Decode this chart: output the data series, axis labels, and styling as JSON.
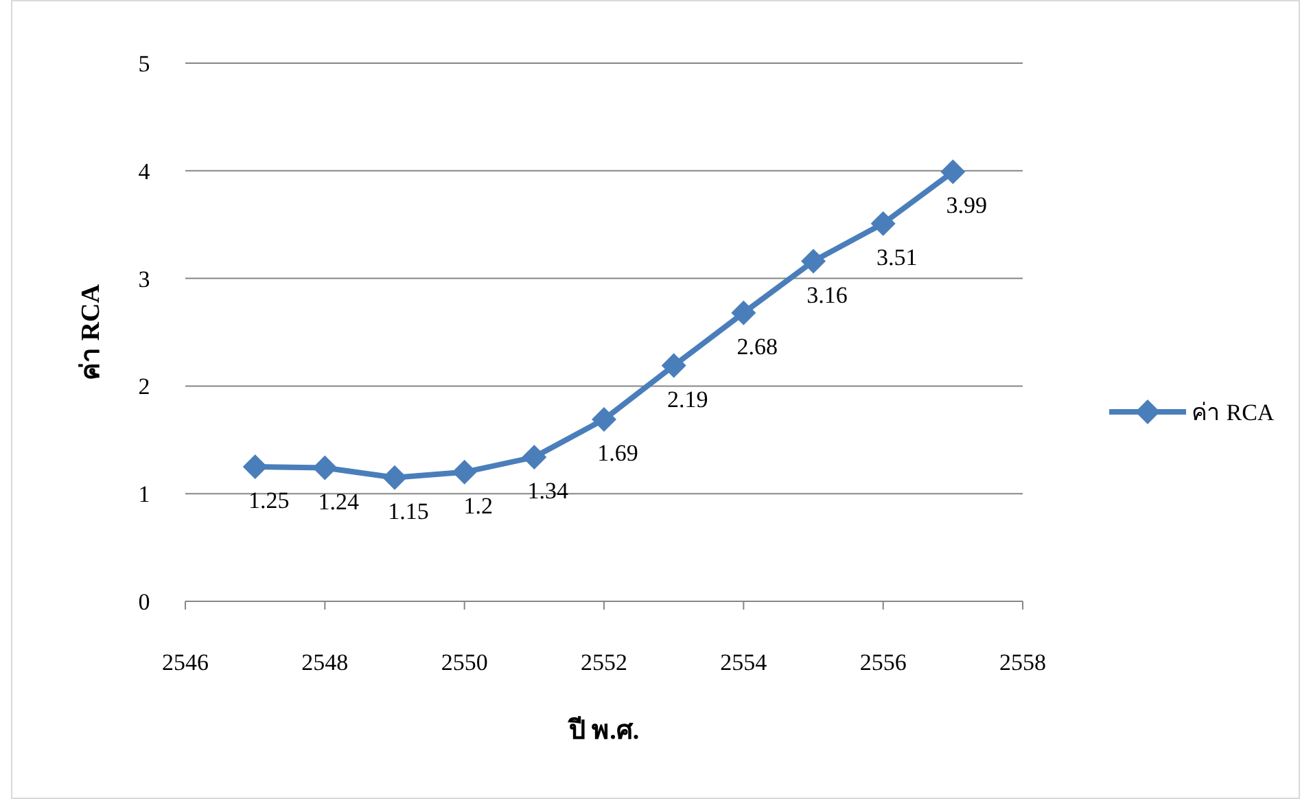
{
  "chart_data": {
    "type": "line",
    "xlabel": "ปี พ.ศ.",
    "ylabel": "ค่า RCA",
    "x": [
      2547,
      2548,
      2549,
      2550,
      2551,
      2552,
      2553,
      2554,
      2555,
      2556,
      2557
    ],
    "series": [
      {
        "name": "ค่า RCA",
        "color": "#4a7ebb",
        "values": [
          1.25,
          1.24,
          1.15,
          1.2,
          1.34,
          1.69,
          2.19,
          2.68,
          3.16,
          3.51,
          3.99
        ]
      }
    ],
    "xlim": [
      2546,
      2558
    ],
    "xticks": [
      2546,
      2548,
      2550,
      2552,
      2554,
      2556,
      2558
    ],
    "ylim": [
      0,
      5
    ],
    "yticks": [
      0,
      1,
      2,
      3,
      4,
      5
    ],
    "grid": "y",
    "legend": "right",
    "marker": "diamond",
    "line_style": "solid",
    "data_labels": true
  }
}
